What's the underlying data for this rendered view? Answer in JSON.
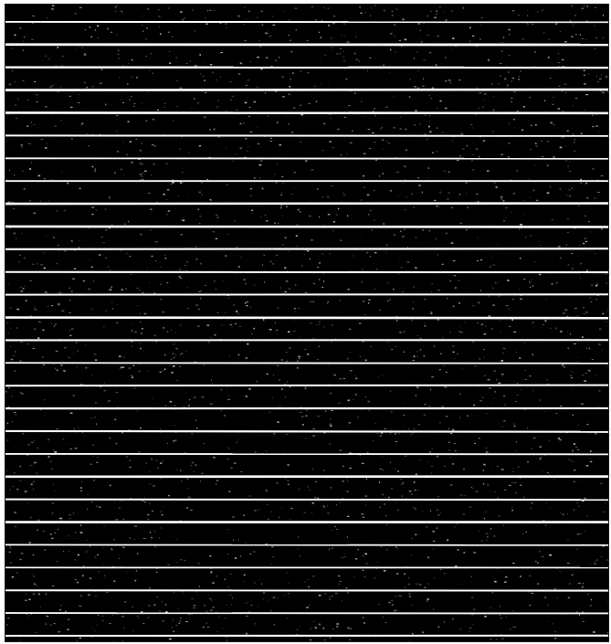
{
  "image": {
    "background_color": "#000000",
    "stripe_color": "#ffffff",
    "speckle_color": "#e6e6e6",
    "stripe_orientation": "horizontal",
    "stripe_count": 28
  }
}
